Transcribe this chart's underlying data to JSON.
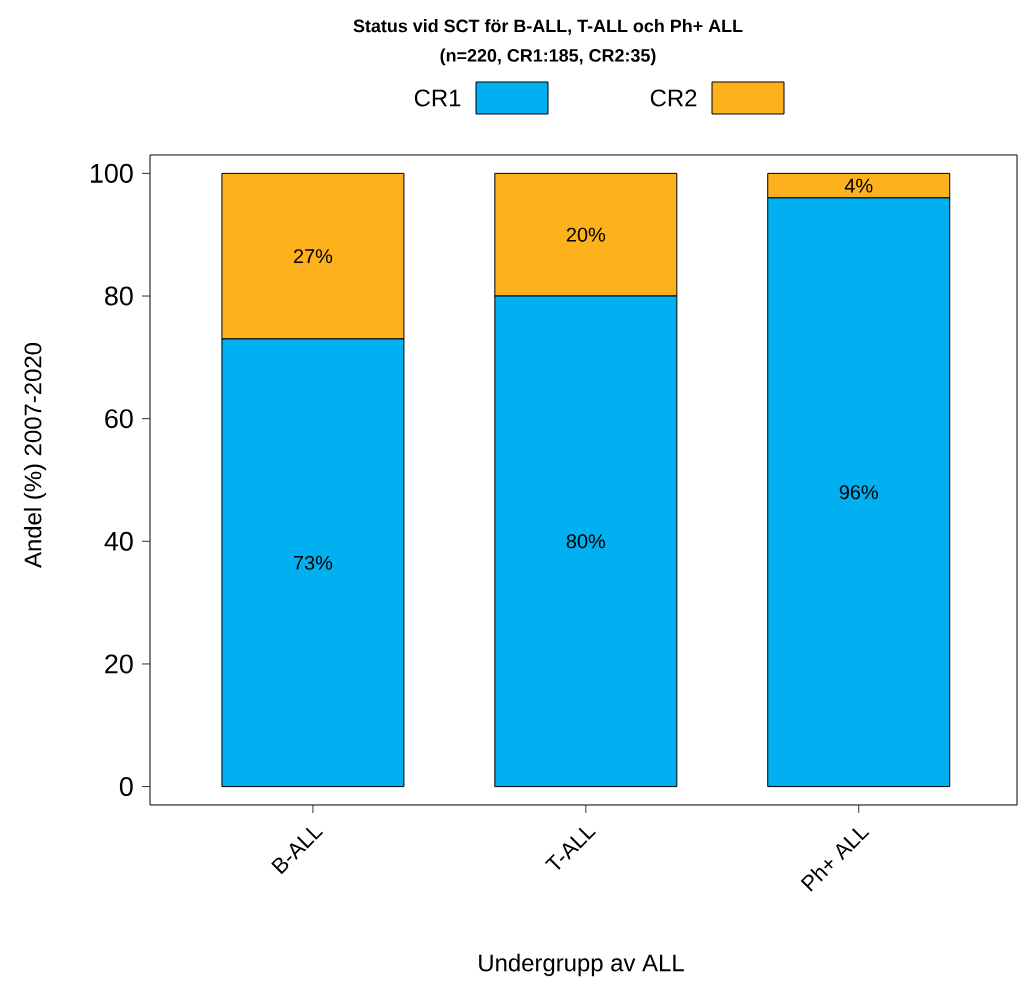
{
  "chart_data": {
    "type": "bar",
    "title": "Status vid SCT för B-ALL, T-ALL och Ph+ ALL",
    "subtitle": "(n=220, CR1:185, CR2:35)",
    "xlabel": "Undergrupp av ALL",
    "ylabel": "Andel (%) 2007-2020",
    "categories": [
      "B-ALL",
      "T-ALL",
      "Ph+ ALL"
    ],
    "stacked": true,
    "legend": "top",
    "series": [
      {
        "name": "CR1",
        "color": "#00b0f0",
        "values": [
          73,
          80,
          96
        ],
        "value_labels": [
          "73%",
          "80%",
          "96%"
        ]
      },
      {
        "name": "CR2",
        "color": "#fdb11d",
        "values": [
          27,
          20,
          4
        ],
        "value_labels": [
          "27%",
          "20%",
          "4%"
        ]
      }
    ],
    "ylim": [
      -3,
      103
    ],
    "yticks": [
      0,
      20,
      40,
      60,
      80,
      100
    ]
  }
}
